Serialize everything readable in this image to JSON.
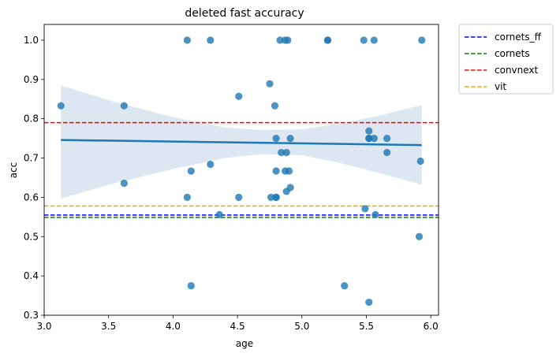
{
  "chart_data": {
    "type": "scatter",
    "title": "deleted fast accuracy",
    "xlabel": "age",
    "ylabel": "acc",
    "xlim": [
      3.0,
      6.06
    ],
    "ylim": [
      0.3,
      1.04
    ],
    "xticks": [
      "3.0",
      "3.5",
      "4.0",
      "4.5",
      "5.0",
      "5.5",
      "6.0"
    ],
    "xtick_values": [
      3.0,
      3.5,
      4.0,
      4.5,
      5.0,
      5.5,
      6.0
    ],
    "yticks": [
      "0.3",
      "0.4",
      "0.5",
      "0.6",
      "0.7",
      "0.8",
      "0.9",
      "1.0"
    ],
    "ytick_values": [
      0.3,
      0.4,
      0.5,
      0.6,
      0.7,
      0.8,
      0.9,
      1.0
    ],
    "grid": false,
    "legend_position": "outside-top-right",
    "points": {
      "color": "#1f77b4",
      "x": [
        3.13,
        3.62,
        3.62,
        4.11,
        4.11,
        4.14,
        4.14,
        4.29,
        4.29,
        4.36,
        4.51,
        4.51,
        4.75,
        4.76,
        4.79,
        4.8,
        4.8,
        4.8,
        4.8,
        4.83,
        4.84,
        4.87,
        4.87,
        4.88,
        4.88,
        4.89,
        4.9,
        4.91,
        4.91,
        5.2,
        5.2,
        5.33,
        5.48,
        5.49,
        5.52,
        5.52,
        5.52,
        5.52,
        5.56,
        5.56,
        5.57,
        5.66,
        5.66,
        5.91,
        5.92,
        5.93
      ],
      "y": [
        0.833,
        0.833,
        0.636,
        1.0,
        0.6,
        0.667,
        0.375,
        1.0,
        0.684,
        0.556,
        0.857,
        0.6,
        0.889,
        0.6,
        0.833,
        0.75,
        0.667,
        0.6,
        0.6,
        1.0,
        0.714,
        1.0,
        0.667,
        0.714,
        0.615,
        1.0,
        0.667,
        0.75,
        0.625,
        1.0,
        1.0,
        0.375,
        1.0,
        0.571,
        0.769,
        0.75,
        0.75,
        0.333,
        1.0,
        0.75,
        0.556,
        0.75,
        0.714,
        0.5,
        0.692,
        1.0
      ]
    },
    "regression": {
      "x": [
        3.13,
        5.93
      ],
      "y": [
        0.746,
        0.733
      ],
      "ci_x": [
        3.13,
        3.5,
        4.0,
        4.4,
        4.7,
        5.0,
        5.3,
        5.6,
        5.93
      ],
      "ci_upper": [
        0.885,
        0.847,
        0.804,
        0.778,
        0.771,
        0.773,
        0.788,
        0.808,
        0.835
      ],
      "ci_lower": [
        0.597,
        0.632,
        0.672,
        0.7,
        0.71,
        0.707,
        0.687,
        0.662,
        0.632
      ],
      "color": "#1f77b4",
      "ci_color": "#dce7f2"
    },
    "hlines": [
      {
        "name": "cornets_ff",
        "y": 0.555,
        "color": "#0000ff"
      },
      {
        "name": "cornets",
        "y": 0.549,
        "color": "#008000"
      },
      {
        "name": "convnext",
        "y": 0.79,
        "color": "#ff0000"
      },
      {
        "name": "vit",
        "y": 0.578,
        "color": "#ffa500"
      }
    ]
  }
}
